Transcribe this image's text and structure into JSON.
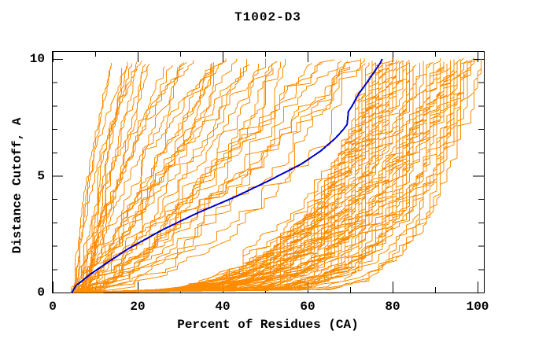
{
  "chart_data": {
    "type": "line",
    "title": "T1002-D3",
    "xlabel": "Percent of Residues (CA)",
    "ylabel": "Distance Cutoff, A",
    "xlim": [
      0,
      101.5
    ],
    "ylim": [
      0,
      10.35
    ],
    "x_ticks_major": [
      0,
      20,
      40,
      60,
      80,
      100
    ],
    "x_minor_step": 10,
    "y_ticks_major": [
      0,
      5,
      10
    ],
    "y_minor_step": 1,
    "grid": false,
    "legend": "none",
    "background_color": "#ffffff",
    "axis_color": "#000000",
    "series": [
      {
        "name": "model-pool",
        "color": "#ff8c00",
        "stroke_width": 1,
        "style": "ensemble",
        "generator": {
          "seed": 1337,
          "start_x_range": [
            4.2,
            8.5
          ],
          "top_y_range": [
            9.6,
            10.05
          ],
          "y_steps": 80,
          "quantize_step": 0.8,
          "groups": [
            {
              "name": "steep-left",
              "count": 20,
              "top_x_range": [
                13,
                38
              ],
              "shape_exp_range": [
                0.8,
                1.7
              ],
              "stalls": 2,
              "noise": 0.05,
              "quantize": false
            },
            {
              "name": "middle",
              "count": 26,
              "top_x_range": [
                38,
                72
              ],
              "shape_exp_range": [
                0.5,
                1.15
              ],
              "stalls": 2,
              "noise": 0.05,
              "quantize": false
            },
            {
              "name": "right-dense",
              "count": 72,
              "top_x_range": [
                72,
                99
              ],
              "shape_exp_range": [
                0.1,
                0.32
              ],
              "stalls": 1,
              "noise": 0.03,
              "quantize": true
            },
            {
              "name": "far-right",
              "count": 3,
              "top_x_range": [
                99,
                101
              ],
              "shape_exp_range": [
                0.12,
                0.3
              ],
              "stalls": 1,
              "noise": 0.02,
              "quantize": true
            }
          ]
        }
      },
      {
        "name": "highlighted-model",
        "color": "#0000cc",
        "stroke_width": 2,
        "points": [
          [
            4.5,
            0
          ],
          [
            5.5,
            0.3
          ],
          [
            9,
            0.8
          ],
          [
            13,
            1.3
          ],
          [
            18,
            1.9
          ],
          [
            26,
            2.7
          ],
          [
            34,
            3.4
          ],
          [
            43,
            4.1
          ],
          [
            51,
            4.8
          ],
          [
            58.5,
            5.5
          ],
          [
            63,
            6.05
          ],
          [
            66.5,
            6.6
          ],
          [
            68.5,
            7.0
          ],
          [
            69.3,
            7.2
          ],
          [
            69.6,
            7.75
          ],
          [
            70.5,
            8.0
          ],
          [
            72,
            8.5
          ],
          [
            74,
            9.0
          ],
          [
            75.5,
            9.4
          ],
          [
            77,
            9.8
          ],
          [
            77.6,
            10.0
          ]
        ]
      }
    ]
  }
}
